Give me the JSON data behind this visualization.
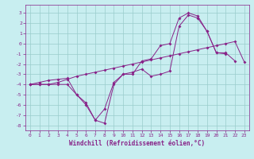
{
  "xlabel": "Windchill (Refroidissement éolien,°C)",
  "background_color": "#c8eef0",
  "grid_color": "#99cccc",
  "line_color": "#882288",
  "x_hours": [
    0,
    1,
    2,
    3,
    4,
    5,
    6,
    7,
    8,
    9,
    10,
    11,
    12,
    13,
    14,
    15,
    16,
    17,
    18,
    19,
    20,
    21,
    22,
    23
  ],
  "series1": [
    -4.0,
    -4.0,
    -4.0,
    -4.0,
    -4.0,
    -5.0,
    -6.0,
    -7.5,
    -7.8,
    -4.0,
    -3.0,
    -3.0,
    -1.7,
    -1.5,
    -0.2,
    0.0,
    2.5,
    3.0,
    2.7,
    1.2,
    -0.9,
    -0.9,
    -1.7,
    null
  ],
  "series2": [
    -4.0,
    -4.0,
    -4.0,
    -3.8,
    -3.5,
    -3.2,
    -3.0,
    -2.8,
    -2.6,
    -2.4,
    -2.2,
    -2.0,
    -1.8,
    -1.6,
    -1.4,
    -1.2,
    -1.0,
    -0.8,
    -0.6,
    -0.4,
    -0.2,
    0.0,
    0.2,
    -1.8
  ],
  "series3": [
    -4.0,
    -3.8,
    -3.6,
    -3.5,
    -3.4,
    -5.0,
    -5.8,
    -7.5,
    -6.4,
    -3.8,
    -3.0,
    -2.8,
    -2.5,
    -3.2,
    -3.0,
    -2.7,
    1.7,
    2.8,
    2.5,
    1.2,
    -0.9,
    -1.0,
    null,
    null
  ],
  "ylim": [
    -8.5,
    3.8
  ],
  "xlim": [
    -0.5,
    23.5
  ],
  "yticks": [
    -8,
    -7,
    -6,
    -5,
    -4,
    -3,
    -2,
    -1,
    0,
    1,
    2,
    3
  ],
  "xticks": [
    0,
    1,
    2,
    3,
    4,
    5,
    6,
    7,
    8,
    9,
    10,
    11,
    12,
    13,
    14,
    15,
    16,
    17,
    18,
    19,
    20,
    21,
    22,
    23
  ],
  "tick_fontsize": 4.5,
  "xlabel_fontsize": 5.5
}
